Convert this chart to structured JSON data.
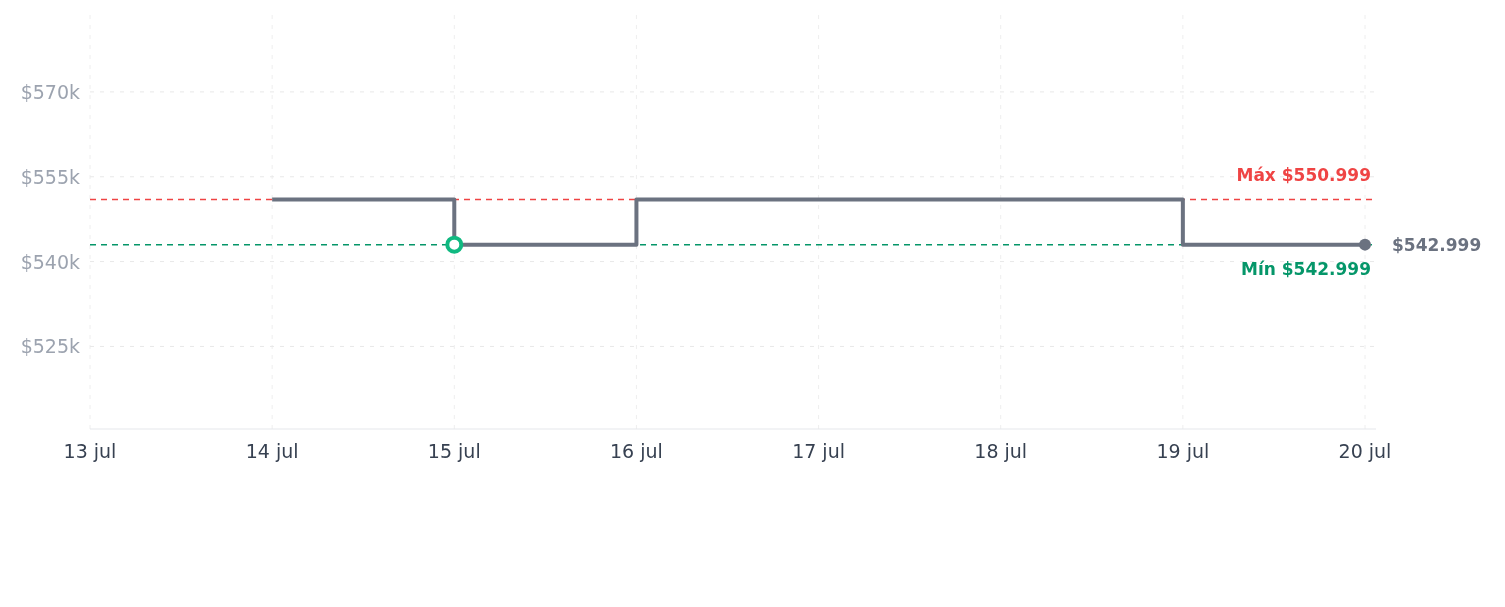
{
  "chart_data": {
    "type": "step",
    "x": [
      "--07-14",
      "--07-15",
      "--07-16",
      "--07-17",
      "--07-18",
      "--07-19",
      "--07-20"
    ],
    "series": [
      {
        "color": "#6b7280",
        "values": [
          550999,
          542999,
          550999,
          550999,
          550999,
          542999,
          542999
        ],
        "marker": "none"
      },
      {
        "type": "scatter",
        "color": "#10b981",
        "x": [
          "--07-15"
        ],
        "values": [
          542999
        ],
        "marker": "circle"
      },
      {
        "type": "scatter",
        "color": "#6b7280",
        "x": [
          "--07-20"
        ],
        "values": [
          542999
        ],
        "marker": "circle"
      }
    ],
    "xlim": [
      "--07-13",
      "--07-20"
    ],
    "xticks": [
      {
        "value": "--07-13",
        "label": "13 jul"
      },
      {
        "value": "--07-14",
        "label": "14 jul"
      },
      {
        "value": "--07-15",
        "label": "15 jul"
      },
      {
        "value": "--07-16",
        "label": "16 jul"
      },
      {
        "value": "--07-17",
        "label": "17 jul"
      },
      {
        "value": "--07-18",
        "label": "18 jul"
      },
      {
        "value": "--07-19",
        "label": "19 jul"
      },
      {
        "value": "--07-20",
        "label": "20 jul"
      }
    ],
    "ylim": [
      510400,
      583600
    ],
    "yticks": [
      {
        "value": 525000,
        "label": "$525k"
      },
      {
        "value": 540000,
        "label": "$540k"
      },
      {
        "value": 555000,
        "label": "$555k"
      },
      {
        "value": 570000,
        "label": "$570k"
      }
    ],
    "ref_lines": [
      {
        "axis": "y",
        "value": 550999,
        "label": "Máx $550.999",
        "color": "#ef4444",
        "line_style": "dashed"
      },
      {
        "axis": "y",
        "value": 542999,
        "label": "Mín $542.999",
        "color": "#059669",
        "line_style": "dashed"
      }
    ],
    "annotations": [
      {
        "text": "$542.999",
        "x": "--07-20",
        "y": 542999
      }
    ],
    "grid": true,
    "line_style": "solid"
  }
}
